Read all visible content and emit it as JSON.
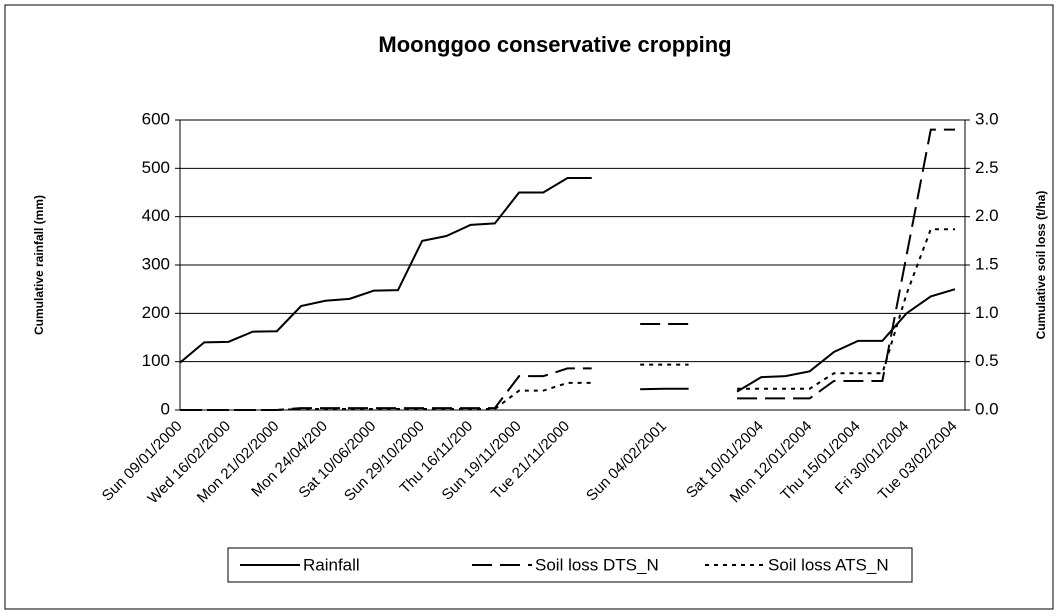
{
  "chart_data": {
    "type": "line",
    "title": "Moonggoo conservative cropping",
    "ylabel": "Cumulative rainfall (mm)",
    "y2label": "Cumulative soil loss (t/ha)",
    "categories": [
      "Sun 09/01/2000",
      null,
      "Wed 16/02/2000",
      null,
      "Mon 21/02/2000",
      null,
      "Mon 24/04/200",
      null,
      "Sat 10/06/2000",
      null,
      "Sun 29/10/2000",
      null,
      "Thu 16/11/200",
      null,
      "Sun 19/11/2000",
      null,
      "Tue 21/11/2000",
      null,
      null,
      null,
      "Sun 04/02/2001",
      null,
      null,
      null,
      "Sat 10/01/2004",
      null,
      "Mon 12/01/2004",
      null,
      "Thu 15/01/2004",
      null,
      "Fri 30/01/2004",
      null,
      "Tue 03/02/2004"
    ],
    "series": [
      {
        "name": "Rainfall",
        "color": "#000000",
        "dash": "solid",
        "axis": "y",
        "values": [
          98,
          140,
          141,
          162,
          163,
          215,
          226,
          230,
          247,
          248,
          350,
          360,
          383,
          386,
          450,
          450,
          480,
          480,
          null,
          43,
          44,
          44,
          null,
          38,
          68,
          70,
          80,
          120,
          143,
          143,
          200,
          235,
          250
        ]
      },
      {
        "name": "Soil loss DTS_N",
        "color": "#000000",
        "dash": "long",
        "axis": "y2",
        "values": [
          0,
          0,
          0,
          0,
          0,
          0.02,
          0.02,
          0.02,
          0.02,
          0.02,
          0.02,
          0.02,
          0.02,
          0.02,
          0.35,
          0.35,
          0.43,
          0.43,
          null,
          0.89,
          0.89,
          0.89,
          null,
          0.12,
          0.12,
          0.12,
          0.12,
          0.3,
          0.3,
          0.3,
          1.6,
          2.9,
          2.9
        ]
      },
      {
        "name": "Soil loss ATS_N",
        "color": "#000000",
        "dash": "dot",
        "axis": "y2",
        "values": [
          0,
          0,
          0,
          0,
          0,
          0.01,
          0.01,
          0.01,
          0.01,
          0.01,
          0.01,
          0.01,
          0.01,
          0.01,
          0.2,
          0.2,
          0.28,
          0.28,
          null,
          0.47,
          0.47,
          0.47,
          null,
          0.22,
          0.22,
          0.22,
          0.22,
          0.38,
          0.38,
          0.38,
          1.2,
          1.87,
          1.87
        ]
      }
    ],
    "ylim": [
      0,
      600
    ],
    "yticks": [
      0,
      100,
      200,
      300,
      400,
      500,
      600
    ],
    "y2lim": [
      0,
      3
    ],
    "y2ticks": [
      {
        "value": 0,
        "label": "0.0"
      },
      0.5,
      {
        "value": 1,
        "label": "1.0"
      },
      1.5,
      {
        "value": 2,
        "label": "2.0"
      },
      2.5,
      {
        "value": 3,
        "label": "3.0"
      }
    ],
    "grid": true,
    "legend": "bottom"
  }
}
